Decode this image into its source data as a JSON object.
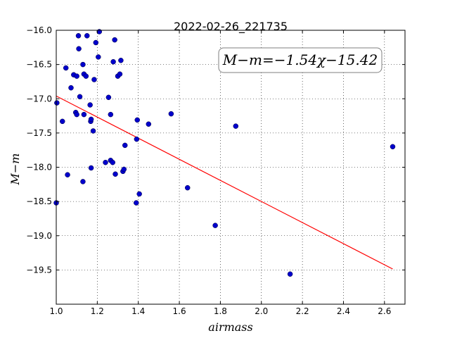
{
  "chart_data": {
    "type": "scatter",
    "title": "2022-02-26_221735",
    "xlabel": "airmass",
    "ylabel": "M−m",
    "xlim": [
      1.0,
      2.7
    ],
    "ylim": [
      -16.0,
      -20.0
    ],
    "y_inverted": true,
    "grid": true,
    "grid_style": "dotted",
    "x_ticks": [
      1.0,
      1.2,
      1.4,
      1.6,
      1.8,
      2.0,
      2.2,
      2.4,
      2.6
    ],
    "x_tick_labels": [
      "1.0",
      "1.2",
      "1.4",
      "1.6",
      "1.8",
      "2.0",
      "2.2",
      "2.4",
      "2.6"
    ],
    "y_ticks": [
      -16.0,
      -16.5,
      -17.0,
      -17.5,
      -18.0,
      -18.5,
      -19.0,
      -19.5
    ],
    "y_tick_labels": [
      "−16.0",
      "−16.5",
      "−17.0",
      "−17.5",
      "−18.0",
      "−18.5",
      "−19.0",
      "−19.5"
    ],
    "annotation": "M−m=−1.54χ−15.42",
    "annotation_placement": "top-right",
    "fit": {
      "slope": -1.54,
      "intercept": -15.42,
      "x_range": [
        1.0,
        2.64
      ],
      "color": "#ff0000"
    },
    "point_color": "#0000cc",
    "points": [
      {
        "x": 1.003,
        "y": -17.06
      },
      {
        "x": 1.0,
        "y": -18.52
      },
      {
        "x": 1.03,
        "y": -17.33
      },
      {
        "x": 1.047,
        "y": -16.55
      },
      {
        "x": 1.055,
        "y": -18.11
      },
      {
        "x": 1.072,
        "y": -16.84
      },
      {
        "x": 1.085,
        "y": -16.65
      },
      {
        "x": 1.095,
        "y": -17.2
      },
      {
        "x": 1.1,
        "y": -16.67
      },
      {
        "x": 1.1,
        "y": -17.23
      },
      {
        "x": 1.108,
        "y": -16.08
      },
      {
        "x": 1.11,
        "y": -16.27
      },
      {
        "x": 1.115,
        "y": -16.97
      },
      {
        "x": 1.13,
        "y": -16.5
      },
      {
        "x": 1.135,
        "y": -16.64
      },
      {
        "x": 1.135,
        "y": -17.23
      },
      {
        "x": 1.13,
        "y": -18.21
      },
      {
        "x": 1.145,
        "y": -16.67
      },
      {
        "x": 1.15,
        "y": -16.08
      },
      {
        "x": 1.165,
        "y": -17.09
      },
      {
        "x": 1.168,
        "y": -17.33
      },
      {
        "x": 1.17,
        "y": -17.3
      },
      {
        "x": 1.17,
        "y": -18.01
      },
      {
        "x": 1.18,
        "y": -17.47
      },
      {
        "x": 1.185,
        "y": -16.72
      },
      {
        "x": 1.193,
        "y": -16.18
      },
      {
        "x": 1.205,
        "y": -16.39
      },
      {
        "x": 1.21,
        "y": -16.02
      },
      {
        "x": 1.24,
        "y": -17.93
      },
      {
        "x": 1.255,
        "y": -16.98
      },
      {
        "x": 1.265,
        "y": -17.23
      },
      {
        "x": 1.265,
        "y": -17.9
      },
      {
        "x": 1.275,
        "y": -17.93
      },
      {
        "x": 1.278,
        "y": -16.46
      },
      {
        "x": 1.285,
        "y": -16.14
      },
      {
        "x": 1.288,
        "y": -18.1
      },
      {
        "x": 1.3,
        "y": -16.67
      },
      {
        "x": 1.31,
        "y": -16.64
      },
      {
        "x": 1.315,
        "y": -16.44
      },
      {
        "x": 1.325,
        "y": -18.06
      },
      {
        "x": 1.33,
        "y": -18.03
      },
      {
        "x": 1.335,
        "y": -17.68
      },
      {
        "x": 1.39,
        "y": -18.52
      },
      {
        "x": 1.392,
        "y": -17.59
      },
      {
        "x": 1.395,
        "y": -17.31
      },
      {
        "x": 1.405,
        "y": -18.39
      },
      {
        "x": 1.45,
        "y": -17.37
      },
      {
        "x": 1.56,
        "y": -17.22
      },
      {
        "x": 1.64,
        "y": -18.3
      },
      {
        "x": 1.775,
        "y": -18.85
      },
      {
        "x": 1.875,
        "y": -17.4
      },
      {
        "x": 2.14,
        "y": -19.56
      },
      {
        "x": 2.64,
        "y": -17.7
      }
    ]
  }
}
